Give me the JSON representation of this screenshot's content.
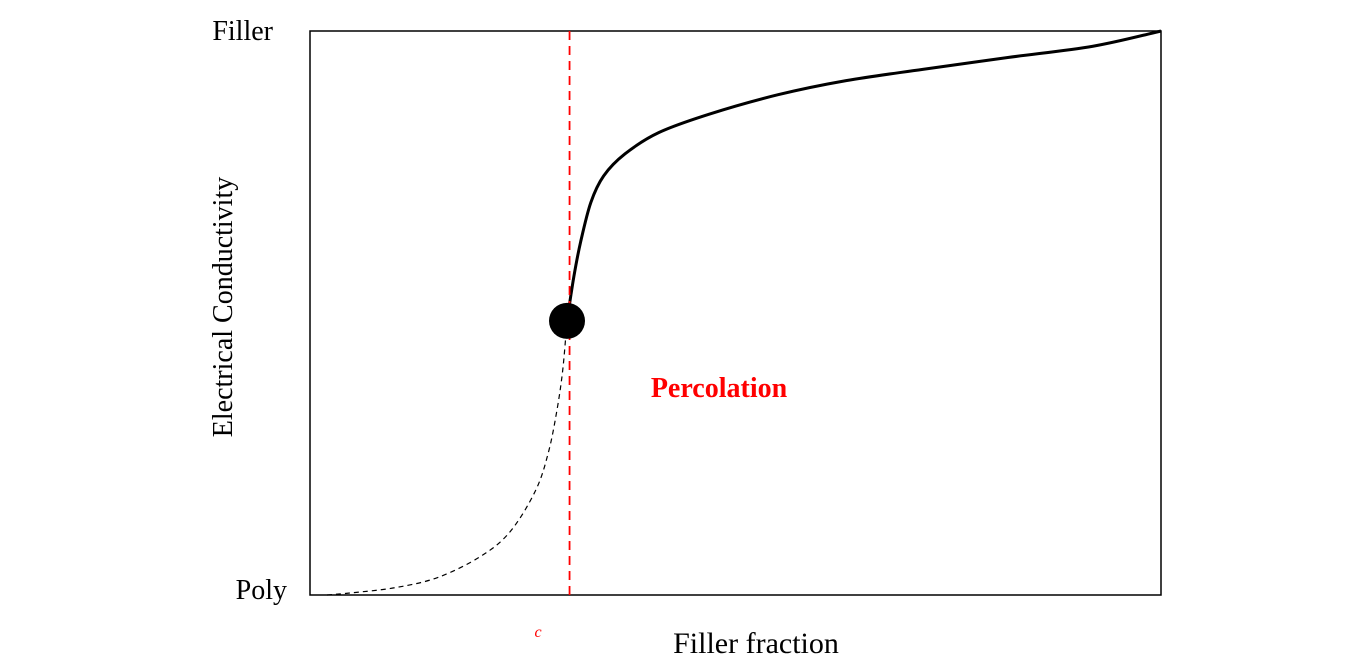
{
  "chart_data": {
    "type": "line",
    "ylabel": "Electrical Conductivity",
    "xlabel": "Filler fraction",
    "y_top_label": "Filler",
    "y_bottom_label": "Poly",
    "x_tick_label": "c",
    "annotation": "Percolation",
    "xlim": [
      0,
      1
    ],
    "ylim": [
      0,
      1
    ],
    "grid": false,
    "threshold_x": 0.305,
    "threshold_point": {
      "x": 0.302,
      "y": 0.486
    },
    "series": [
      {
        "style": "dashed",
        "points": [
          [
            0.02,
            0.0
          ],
          [
            0.05,
            0.004
          ],
          [
            0.1,
            0.013
          ],
          [
            0.15,
            0.031
          ],
          [
            0.2,
            0.068
          ],
          [
            0.235,
            0.112
          ],
          [
            0.265,
            0.185
          ],
          [
            0.28,
            0.252
          ],
          [
            0.29,
            0.326
          ],
          [
            0.297,
            0.399
          ],
          [
            0.302,
            0.486
          ]
        ]
      },
      {
        "style": "solid",
        "points": [
          [
            0.302,
            0.486
          ],
          [
            0.31,
            0.564
          ],
          [
            0.318,
            0.626
          ],
          [
            0.33,
            0.696
          ],
          [
            0.345,
            0.743
          ],
          [
            0.37,
            0.782
          ],
          [
            0.41,
            0.82
          ],
          [
            0.47,
            0.853
          ],
          [
            0.55,
            0.887
          ],
          [
            0.63,
            0.912
          ],
          [
            0.72,
            0.932
          ],
          [
            0.82,
            0.953
          ],
          [
            0.92,
            0.973
          ],
          [
            1.0,
            1.0
          ]
        ]
      }
    ]
  },
  "colors": {
    "axis": "#000000",
    "threshold": "#ff0000",
    "annotation": "#ff0000",
    "curve": "#000000"
  }
}
